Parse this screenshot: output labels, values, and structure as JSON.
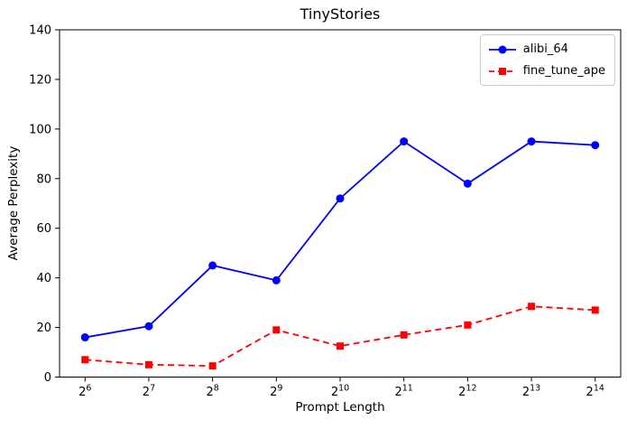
{
  "figure": {
    "background_color": "#ffffff",
    "axes_color": "#000000"
  },
  "chart_data": {
    "type": "line",
    "title": "TinyStories",
    "xlabel": "Prompt Length",
    "ylabel": "Average Perplexity",
    "categories": [
      "2^6",
      "2^7",
      "2^8",
      "2^9",
      "2^10",
      "2^11",
      "2^12",
      "2^13",
      "2^14"
    ],
    "x_tick_base": "2",
    "x_tick_exponents": [
      "6",
      "7",
      "8",
      "9",
      "10",
      "11",
      "12",
      "13",
      "14"
    ],
    "ylim": [
      0,
      140
    ],
    "yticks": [
      0,
      20,
      40,
      60,
      80,
      100,
      120,
      140
    ],
    "grid": false,
    "legend_position": "upper right",
    "series": [
      {
        "name": "alibi_64",
        "color": "#0000ff",
        "marker": "circle",
        "line_style": "solid",
        "values": [
          16,
          20.5,
          45,
          39,
          72,
          95,
          78,
          95,
          93.5
        ]
      },
      {
        "name": "fine_tune_ape",
        "color": "#ff0000",
        "marker": "square",
        "line_style": "dashed",
        "values": [
          7,
          5,
          4.5,
          19,
          12.5,
          17,
          21,
          28.5,
          27
        ]
      }
    ]
  }
}
